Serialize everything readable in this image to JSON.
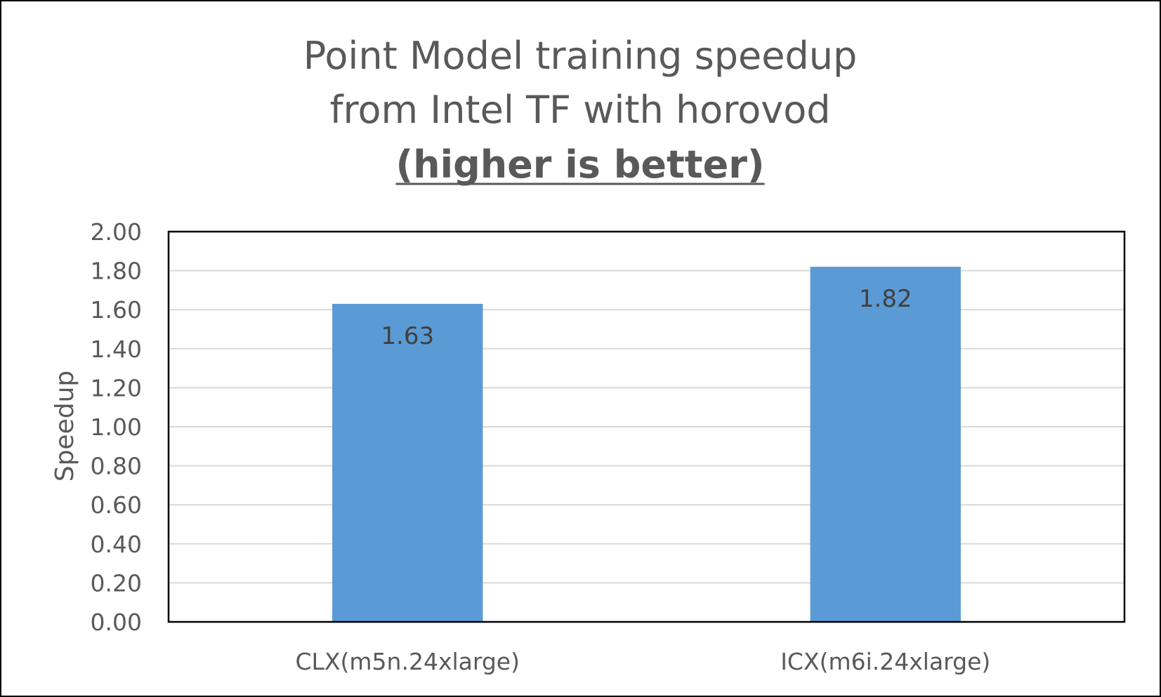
{
  "chart_data": {
    "type": "bar",
    "title": [
      "Point Model training speedup",
      "from Intel TF with horovod"
    ],
    "subtitle": "(higher is better)",
    "categories": [
      "CLX(m5n.24xlarge)",
      "ICX(m6i.24xlarge)"
    ],
    "series": [
      {
        "values": [
          1.63,
          1.82
        ],
        "data_labels": [
          "1.63",
          "1.82"
        ]
      }
    ],
    "xlabel": "",
    "ylabel": "Speedup",
    "ylim": [
      0,
      2
    ],
    "yticks": [
      "0.00",
      "0.20",
      "0.40",
      "0.60",
      "0.80",
      "1.00",
      "1.20",
      "1.40",
      "1.60",
      "1.80",
      "2.00"
    ],
    "grid": true,
    "legend": "none",
    "colors": {
      "bar": "#5B9BD5",
      "grid": "#D9D9D9",
      "plot_border": "#000000",
      "text": "#595959"
    }
  }
}
